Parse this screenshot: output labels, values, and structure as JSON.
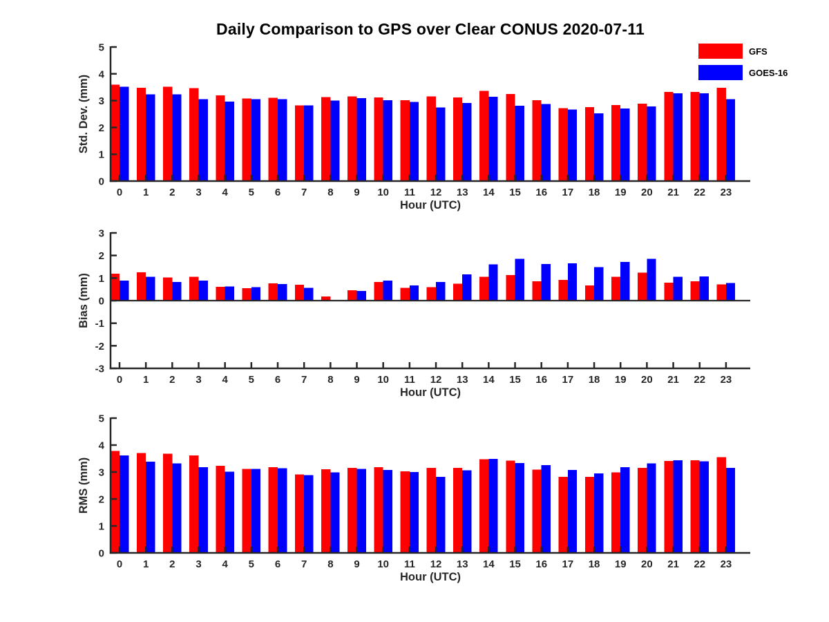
{
  "title": "Daily Comparison to GPS over Clear CONUS 2020-07-11",
  "legend": {
    "position": "top-right",
    "entries": [
      {
        "label": "GFS",
        "color": "#ff0000",
        "swatch_icon": "red-rect-swatch"
      },
      {
        "label": "GOES-16",
        "color": "#0000ff",
        "swatch_icon": "blue-rect-swatch"
      }
    ]
  },
  "colors": {
    "gfs_red": "#ff0000",
    "goes16_blue": "#0000ff",
    "axis": "#262626",
    "title_text": "#000000"
  },
  "chart_data": [
    {
      "type": "bar",
      "panel": "std-dev",
      "xlabel": "Hour (UTC)",
      "ylabel": "Std. Dev. (mm)",
      "ylim": [
        0,
        5
      ],
      "yticks": [
        0,
        1,
        2,
        3,
        4,
        5
      ],
      "grid": "off",
      "categories": [
        "0",
        "1",
        "2",
        "3",
        "4",
        "5",
        "6",
        "7",
        "8",
        "9",
        "10",
        "11",
        "12",
        "13",
        "14",
        "15",
        "16",
        "17",
        "18",
        "19",
        "20",
        "21",
        "22",
        "23"
      ],
      "series": [
        {
          "name": "GFS",
          "color": "#ff0000",
          "values": [
            3.6,
            3.48,
            3.52,
            3.47,
            3.2,
            3.08,
            3.1,
            2.82,
            3.13,
            3.16,
            3.12,
            3.02,
            3.16,
            3.12,
            3.36,
            3.25,
            3.01,
            2.72,
            2.76,
            2.84,
            2.89,
            3.33,
            3.32,
            3.48
          ]
        },
        {
          "name": "GOES-16",
          "color": "#0000ff",
          "values": [
            3.52,
            3.24,
            3.23,
            3.06,
            2.97,
            3.06,
            3.06,
            2.82,
            3.0,
            3.09,
            3.02,
            2.95,
            2.74,
            2.91,
            3.14,
            2.81,
            2.87,
            2.67,
            2.52,
            2.71,
            2.78,
            3.27,
            3.27,
            3.06
          ]
        }
      ]
    },
    {
      "type": "bar",
      "panel": "bias",
      "xlabel": "Hour (UTC)",
      "ylabel": "Bias (mm)",
      "ylim": [
        -3,
        3
      ],
      "yticks": [
        -3,
        -2,
        -1,
        0,
        1,
        2,
        3
      ],
      "grid": "off",
      "categories": [
        "0",
        "1",
        "2",
        "3",
        "4",
        "5",
        "6",
        "7",
        "8",
        "9",
        "10",
        "11",
        "12",
        "13",
        "14",
        "15",
        "16",
        "17",
        "18",
        "19",
        "20",
        "21",
        "22",
        "23"
      ],
      "series": [
        {
          "name": "GFS",
          "color": "#ff0000",
          "values": [
            1.19,
            1.26,
            1.02,
            1.05,
            0.61,
            0.55,
            0.76,
            0.7,
            0.19,
            0.46,
            0.82,
            0.57,
            0.6,
            0.75,
            1.05,
            1.13,
            0.85,
            0.92,
            0.68,
            1.05,
            1.24,
            0.8,
            0.85,
            0.72
          ]
        },
        {
          "name": "GOES-16",
          "color": "#0000ff",
          "values": [
            0.89,
            1.05,
            0.83,
            0.89,
            0.63,
            0.6,
            0.74,
            0.57,
            0.03,
            0.43,
            0.89,
            0.68,
            0.82,
            1.17,
            1.6,
            1.85,
            1.62,
            1.65,
            1.48,
            1.71,
            1.85,
            1.06,
            1.07,
            0.78
          ]
        }
      ]
    },
    {
      "type": "bar",
      "panel": "rms",
      "xlabel": "Hour (UTC)",
      "ylabel": "RMS (mm)",
      "ylim": [
        0,
        5
      ],
      "yticks": [
        0,
        1,
        2,
        3,
        4,
        5
      ],
      "grid": "off",
      "categories": [
        "0",
        "1",
        "2",
        "3",
        "4",
        "5",
        "6",
        "7",
        "8",
        "9",
        "10",
        "11",
        "12",
        "13",
        "14",
        "15",
        "16",
        "17",
        "18",
        "19",
        "20",
        "21",
        "22",
        "23"
      ],
      "series": [
        {
          "name": "GFS",
          "color": "#ff0000",
          "values": [
            3.78,
            3.71,
            3.68,
            3.62,
            3.23,
            3.11,
            3.18,
            2.91,
            3.1,
            3.16,
            3.18,
            3.03,
            3.16,
            3.15,
            3.47,
            3.42,
            3.09,
            2.82,
            2.82,
            2.99,
            3.15,
            3.41,
            3.44,
            3.55
          ]
        },
        {
          "name": "GOES-16",
          "color": "#0000ff",
          "values": [
            3.62,
            3.39,
            3.32,
            3.18,
            3.01,
            3.11,
            3.14,
            2.88,
            2.99,
            3.11,
            3.08,
            3.0,
            2.82,
            3.06,
            3.49,
            3.33,
            3.26,
            3.08,
            2.95,
            3.18,
            3.32,
            3.44,
            3.4,
            3.15
          ]
        }
      ]
    }
  ]
}
